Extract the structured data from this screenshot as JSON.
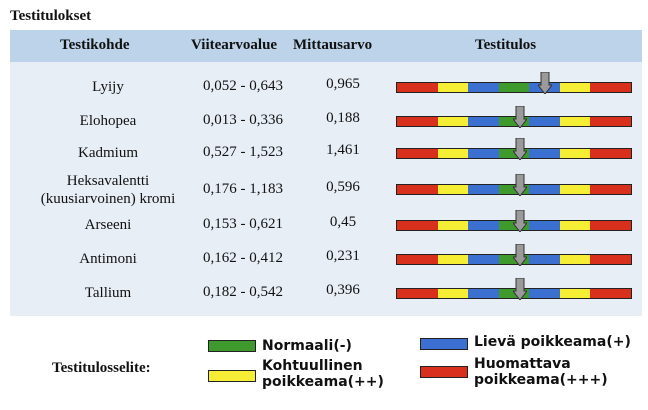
{
  "title": "Testitulokset",
  "headers": {
    "testikohde": "Testikohde",
    "viitearvoalue": "Viitearvoalue",
    "mittausarvo": "Mittausarvo",
    "testitulos": "Testitulos"
  },
  "colors": {
    "red": "#d8301c",
    "yellow": "#f6ee34",
    "green": "#3e9a2c",
    "blue": "#3b6fd0",
    "header_bg": "#bcd3ea",
    "table_bg": "#e8eef6",
    "arrow": "#9a9a9a"
  },
  "rows": [
    {
      "name": "Lyijy",
      "range": "0,052 - 0,643",
      "value": "0,965",
      "result_zone": "mild-deviation-high"
    },
    {
      "name": "Elohopea",
      "range": "0,013 - 0,336",
      "value": "0,188",
      "result_zone": "normal"
    },
    {
      "name": "Kadmium",
      "range": "0,527 - 1,523",
      "value": "1,461",
      "result_zone": "normal"
    },
    {
      "name": "Heksavalentti (kuusiarvoinen) kromi",
      "range": "0,176 - 1,183",
      "value": "0,596",
      "result_zone": "normal"
    },
    {
      "name": "Arseeni",
      "range": "0,153 - 0,621",
      "value": "0,45",
      "result_zone": "normal"
    },
    {
      "name": "Antimoni",
      "range": "0,162 - 0,412",
      "value": "0,231",
      "result_zone": "normal"
    },
    {
      "name": "Tallium",
      "range": "0,182 - 0,542",
      "value": "0,396",
      "result_zone": "normal"
    }
  ],
  "legend": {
    "title": "Testitulosselite:",
    "normal": "Normaali(-)",
    "moderate_line1": "Kohtuullinen",
    "moderate_line2": "poikkeama(++)",
    "mild": "Lievä poikkeama(+)",
    "significant_line1": "Huomattava",
    "significant_line2": "poikkeama(+++)"
  }
}
